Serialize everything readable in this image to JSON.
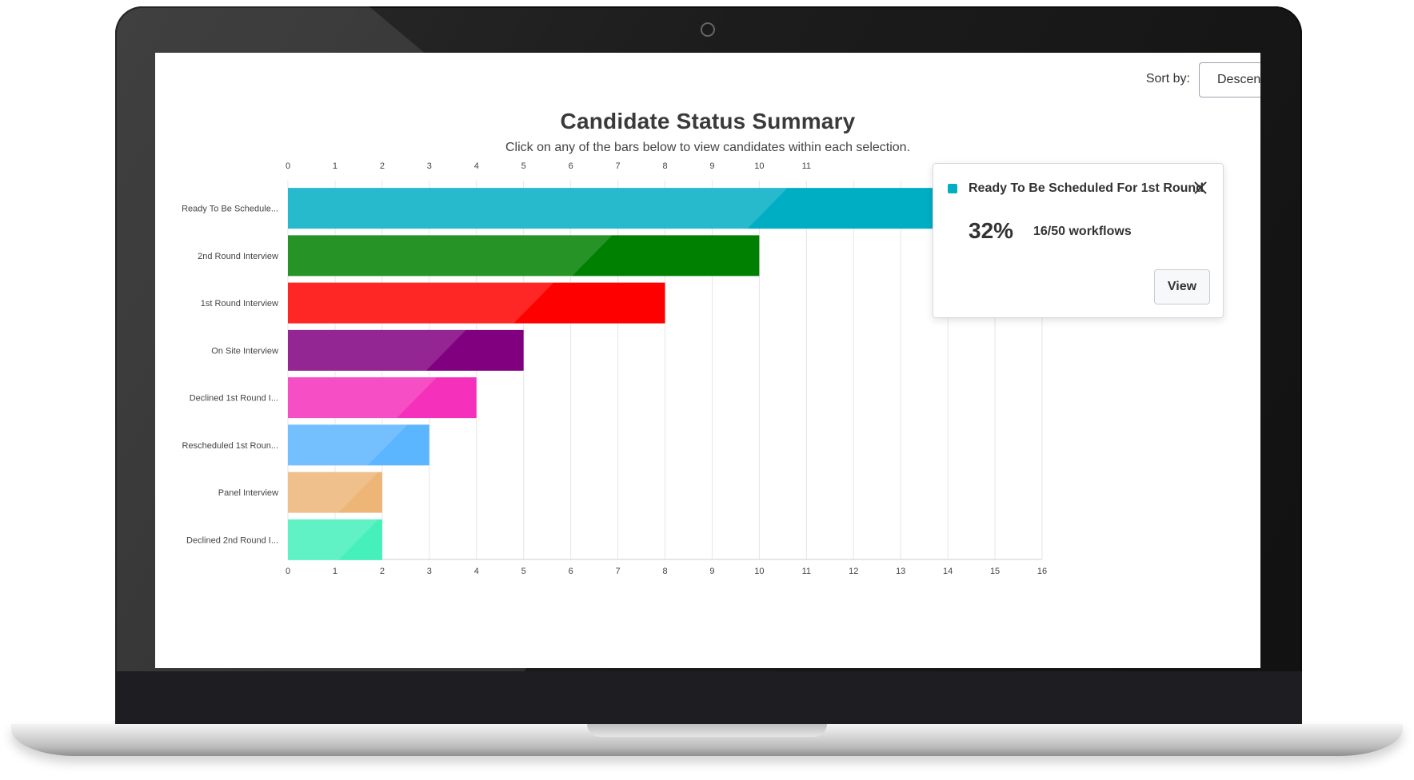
{
  "sort": {
    "label": "Sort by:",
    "selected": "Descend"
  },
  "chart_data": {
    "type": "bar",
    "orientation": "horizontal",
    "title": "Candidate Status Summary",
    "subtitle": "Click on any of the bars below to view candidates within each selection.",
    "categories": [
      "Ready To Be Schedule...",
      "2nd Round Interview",
      "1st Round Interview",
      "On Site Interview",
      "Declined 1st Round I...",
      "Rescheduled 1st Roun...",
      "Panel Interview",
      "Declined 2nd Round I..."
    ],
    "values": [
      16,
      10,
      8,
      5,
      4,
      3,
      2,
      2
    ],
    "colors": [
      "#00aec4",
      "#008000",
      "#ff0000",
      "#800080",
      "#f530ba",
      "#5cb6ff",
      "#edb677",
      "#45f0bb"
    ],
    "xlim": [
      0,
      16
    ],
    "xticks": [
      "0",
      "1",
      "2",
      "3",
      "4",
      "5",
      "6",
      "7",
      "8",
      "9",
      "10",
      "11",
      "12",
      "13",
      "14",
      "15",
      "16"
    ],
    "grid": true
  },
  "popup": {
    "title": "Ready To Be Scheduled For 1st Round",
    "percent": "32%",
    "count": "16/50 workflows",
    "view_label": "View",
    "swatch_color": "#00aec4"
  }
}
